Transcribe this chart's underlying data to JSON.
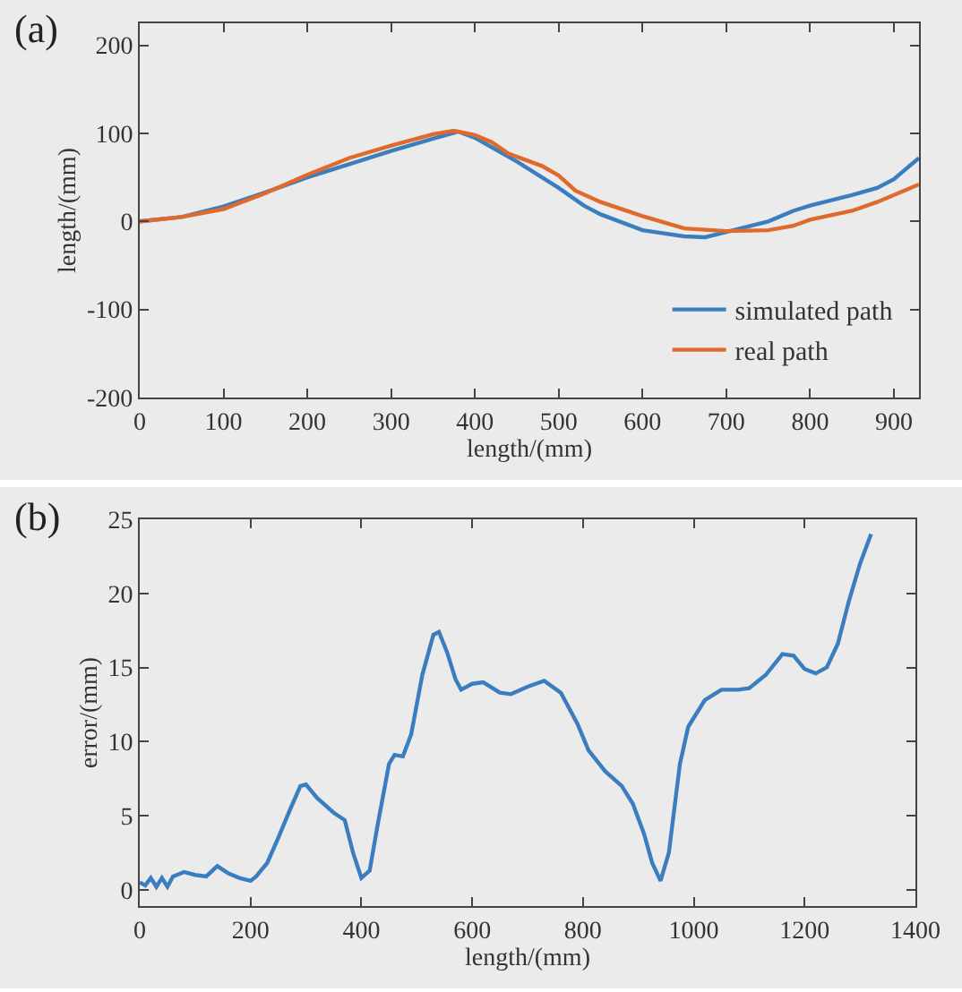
{
  "chart_data": [
    {
      "type": "line",
      "title": "(a)",
      "xlabel": "length/(mm)",
      "ylabel": "length/(mm)",
      "xlim": [
        0,
        930
      ],
      "xticks": [
        0,
        100,
        200,
        300,
        400,
        500,
        600,
        700,
        800,
        900
      ],
      "ylim": [
        -200,
        225
      ],
      "yticks": [
        -200,
        -100,
        0,
        100,
        200
      ],
      "grid": false,
      "legend": "bottom right",
      "line_style": "solid",
      "marker": "none",
      "series": [
        {
          "name": "simulated path",
          "color": "#3a7ebf",
          "x": [
            0,
            50,
            100,
            150,
            200,
            250,
            300,
            350,
            380,
            400,
            450,
            500,
            530,
            550,
            600,
            650,
            675,
            700,
            750,
            780,
            800,
            850,
            880,
            900,
            930
          ],
          "values": [
            0,
            5,
            17,
            33,
            50,
            65,
            80,
            94,
            102,
            95,
            68,
            38,
            18,
            8,
            -10,
            -17,
            -18,
            -12,
            0,
            12,
            18,
            30,
            38,
            48,
            72
          ]
        },
        {
          "name": "real path",
          "color": "#e06a2b",
          "x": [
            0,
            50,
            100,
            150,
            200,
            250,
            300,
            350,
            375,
            400,
            420,
            440,
            480,
            500,
            520,
            550,
            600,
            650,
            700,
            750,
            780,
            800,
            850,
            880,
            930
          ],
          "values": [
            0,
            5,
            14,
            32,
            53,
            72,
            86,
            99,
            103,
            98,
            90,
            77,
            63,
            52,
            35,
            22,
            6,
            -8,
            -11,
            -10,
            -5,
            2,
            12,
            22,
            42
          ]
        }
      ]
    },
    {
      "type": "line",
      "title": "(b)",
      "xlabel": "length/(mm)",
      "ylabel": "error/(mm)",
      "xlim": [
        0,
        1400
      ],
      "xticks": [
        0,
        200,
        400,
        600,
        800,
        1000,
        1200,
        1400
      ],
      "ylim": [
        -1.1,
        25
      ],
      "yticks": [
        0,
        5,
        10,
        15,
        20,
        25
      ],
      "grid": false,
      "legend": false,
      "line_style": "solid",
      "marker": "none",
      "series": [
        {
          "color": "#3a7ebf",
          "x": [
            0,
            10,
            20,
            30,
            40,
            50,
            60,
            80,
            100,
            120,
            140,
            160,
            180,
            200,
            210,
            230,
            250,
            270,
            290,
            300,
            320,
            350,
            370,
            385,
            400,
            415,
            430,
            450,
            460,
            475,
            490,
            510,
            530,
            540,
            555,
            570,
            580,
            600,
            620,
            650,
            670,
            700,
            730,
            760,
            790,
            810,
            840,
            870,
            890,
            910,
            925,
            940,
            955,
            975,
            990,
            1020,
            1050,
            1080,
            1100,
            1130,
            1160,
            1180,
            1200,
            1220,
            1240,
            1260,
            1280,
            1300,
            1320
          ],
          "values": [
            0.5,
            0.3,
            0.8,
            0.2,
            0.8,
            0.2,
            0.9,
            1.2,
            1.0,
            0.9,
            1.6,
            1.1,
            0.8,
            0.6,
            0.9,
            1.8,
            3.5,
            5.3,
            7.0,
            7.1,
            6.2,
            5.2,
            4.7,
            2.5,
            0.8,
            1.3,
            4.5,
            8.5,
            9.1,
            9.0,
            10.5,
            14.5,
            17.2,
            17.4,
            16.0,
            14.2,
            13.5,
            13.9,
            14.0,
            13.3,
            13.2,
            13.7,
            14.1,
            13.3,
            11.2,
            9.4,
            8.0,
            7.0,
            5.8,
            3.8,
            1.8,
            0.6,
            2.5,
            8.5,
            11.0,
            12.8,
            13.5,
            13.5,
            13.6,
            14.5,
            15.9,
            15.8,
            14.9,
            14.6,
            15.0,
            16.6,
            19.5,
            22.0,
            24.0
          ]
        }
      ]
    }
  ]
}
